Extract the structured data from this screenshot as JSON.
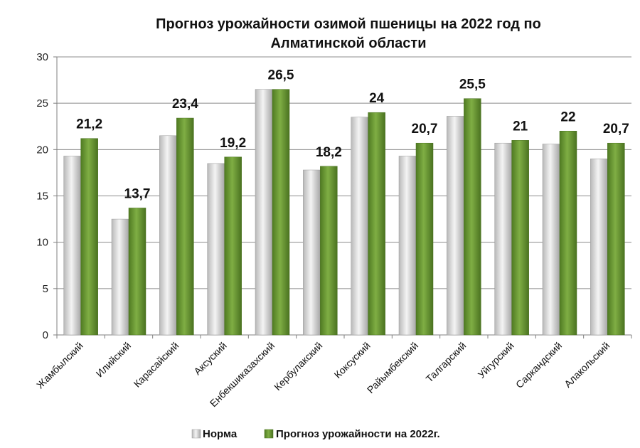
{
  "chart_data": {
    "type": "bar",
    "title_line1": "Прогноз урожайности озимой пшеницы на 2022 год по",
    "title_line2": "Алматинской области",
    "categories": [
      "Жамбылский",
      "Илийский",
      "Карасайский",
      "Аксуский",
      "Енбекшиказахский",
      "Кербулакский",
      "Коксуский",
      "Райымбекский",
      "Талгарский",
      "Уйгурский",
      "Саркандский",
      "Алакольский"
    ],
    "series": [
      {
        "name": "Норма",
        "values": [
          19.3,
          12.5,
          21.5,
          18.5,
          26.5,
          17.8,
          23.5,
          19.3,
          23.6,
          20.7,
          20.6,
          19.0
        ],
        "color": "#d9d9d9"
      },
      {
        "name": "Прогноз урожайности на 2022г.",
        "values": [
          21.2,
          13.7,
          23.4,
          19.2,
          26.5,
          18.2,
          24,
          20.7,
          25.5,
          21,
          22,
          20.7
        ],
        "color": "#6b9a35"
      }
    ],
    "data_labels": [
      "21,2",
      "13,7",
      "23,4",
      "19,2",
      "26,5",
      "18,2",
      "24",
      "20,7",
      "25,5",
      "21",
      "22",
      "20,7"
    ],
    "ylim": [
      0,
      30
    ],
    "yticks": [
      0,
      5,
      10,
      15,
      20,
      25,
      30
    ],
    "grid": true,
    "legend_position": "bottom"
  }
}
